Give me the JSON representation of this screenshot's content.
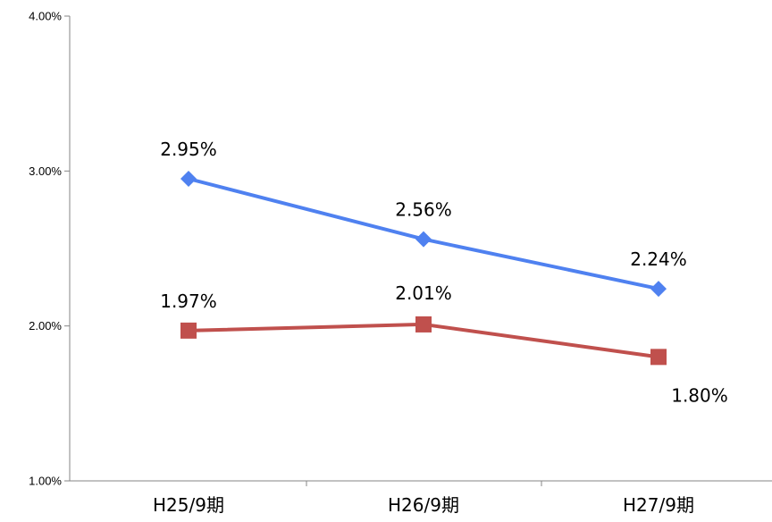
{
  "chart_data": {
    "type": "line",
    "title": "",
    "xlabel": "",
    "ylabel": "",
    "categories": [
      "H25/9期",
      "H26/9期",
      "H27/9期"
    ],
    "yticks": [
      "1.00%",
      "2.00%",
      "3.00%",
      "4.00%"
    ],
    "ylim": [
      1.0,
      4.0
    ],
    "grid": false,
    "legend": "none",
    "series": [
      {
        "values": [
          2.95,
          2.56,
          2.24
        ],
        "labels": [
          "2.95%",
          "2.56%",
          "2.24%"
        ],
        "color": "#4f81f0",
        "marker": "diamond"
      },
      {
        "values": [
          1.97,
          2.01,
          1.8
        ],
        "labels": [
          "1.97%",
          "2.01%",
          "1.80%"
        ],
        "color": "#c0504d",
        "marker": "square"
      }
    ]
  }
}
